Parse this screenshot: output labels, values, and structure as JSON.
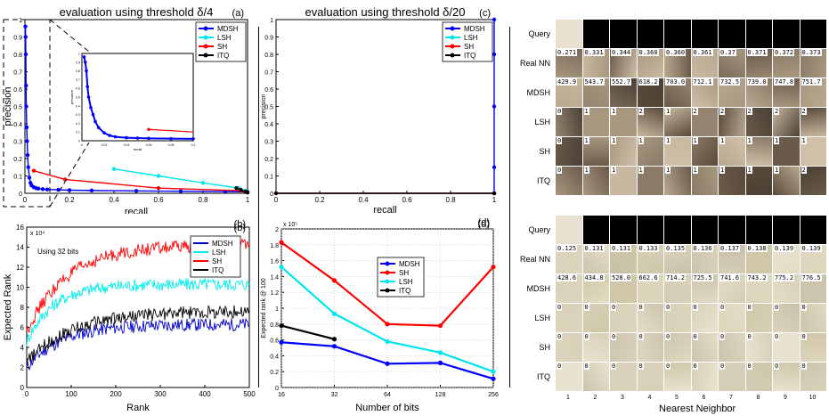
{
  "chart_data": [
    {
      "id": "a",
      "type": "line",
      "panel_label": "(a)",
      "title": "evaluation using threshold δ/4",
      "xlabel": "recall",
      "ylabel": "precision",
      "xlim": [
        0,
        1
      ],
      "ylim": [
        0,
        1
      ],
      "xticks": [
        "0",
        "0.2",
        "0.4",
        "0.6",
        "0.8",
        "1"
      ],
      "yticks": [
        "0",
        "0.1",
        "0.2",
        "0.3",
        "0.4",
        "0.5",
        "0.6",
        "0.7",
        "0.8",
        "0.9",
        "1"
      ],
      "legend": "top-right",
      "series": [
        {
          "name": "MDSH",
          "color": "#0000ff",
          "x": [
            0.002,
            0.003,
            0.004,
            0.005,
            0.006,
            0.008,
            0.01,
            0.012,
            0.015,
            0.02,
            0.025,
            0.03,
            0.04,
            0.05,
            0.06,
            0.08,
            0.1,
            0.15,
            0.2,
            0.3,
            0.5,
            0.7,
            0.9,
            1.0
          ],
          "y": [
            0.96,
            0.9,
            0.8,
            0.62,
            0.5,
            0.38,
            0.3,
            0.22,
            0.15,
            0.09,
            0.06,
            0.045,
            0.035,
            0.03,
            0.027,
            0.024,
            0.022,
            0.02,
            0.018,
            0.016,
            0.014,
            0.012,
            0.01,
            0.008
          ]
        },
        {
          "name": "LSH",
          "color": "#00e5ee",
          "x": [
            0.4,
            0.6,
            0.8,
            0.96,
            0.99,
            1.0
          ],
          "y": [
            0.14,
            0.1,
            0.06,
            0.03,
            0.015,
            0.005
          ]
        },
        {
          "name": "SH",
          "color": "#ff0000",
          "x": [
            0.04,
            0.18,
            0.6,
            0.97,
            1.0
          ],
          "y": [
            0.13,
            0.08,
            0.03,
            0.015,
            0.005
          ]
        },
        {
          "name": "ITQ",
          "color": "#000000",
          "x": [
            0.95,
            0.97,
            0.99,
            1.0
          ],
          "y": [
            0.03,
            0.02,
            0.01,
            0.005
          ]
        }
      ],
      "inset": {
        "xlabel": "recall",
        "ylabel": "precision",
        "xticks": [
          "0",
          "0.02",
          "0.04",
          "0.06",
          "0.08",
          "0.1"
        ],
        "yticks": [
          "0",
          "0.1",
          "0.2",
          "0.3",
          "0.4",
          "0.5",
          "0.6",
          "0.7",
          "0.8",
          "0.9",
          "1"
        ]
      }
    },
    {
      "id": "b",
      "type": "line",
      "panel_label": "(b)",
      "annotation": "Using 32 bits",
      "exponent": "x 10⁴",
      "xlabel": "Rank",
      "ylabel": "Expected Rank",
      "xlim": [
        0,
        500
      ],
      "ylim": [
        0,
        16
      ],
      "xticks": [
        "0",
        "100",
        "200",
        "300",
        "400",
        "500"
      ],
      "yticks": [
        "0",
        "2",
        "4",
        "6",
        "8",
        "10",
        "12",
        "14",
        "16"
      ],
      "legend": "top-right",
      "series": [
        {
          "name": "MDSH",
          "color": "#0000cc",
          "start": 2.0,
          "end": 6.3,
          "rate": 80
        },
        {
          "name": "LSH",
          "color": "#00eeee",
          "start": 4.6,
          "end": 10.3,
          "rate": 60
        },
        {
          "name": "SH",
          "color": "#ff0000",
          "start": 5.6,
          "end": 14.2,
          "rate": 90
        },
        {
          "name": "ITQ",
          "color": "#000000",
          "start": 2.5,
          "end": 7.6,
          "rate": 100
        }
      ]
    },
    {
      "id": "c",
      "type": "line",
      "panel_label": "(c)",
      "title": "evaluation using threshold δ/20",
      "xlabel": "recall",
      "ylabel": "precision",
      "xlim": [
        0,
        1
      ],
      "ylim": [
        0,
        1
      ],
      "xticks": [
        "0",
        "0.2",
        "0.4",
        "0.6",
        "0.8",
        "1"
      ],
      "yticks": [
        "0",
        "0.1",
        "0.2",
        "0.3",
        "0.4",
        "0.5",
        "0.6",
        "0.7",
        "0.8",
        "0.9",
        "1"
      ],
      "legend": "top-right",
      "series": [
        {
          "name": "MDSH",
          "color": "#0000ff",
          "x": [
            1.0,
            1.0,
            1.0,
            1.0,
            1.0
          ],
          "y": [
            0.0,
            0.15,
            0.5,
            0.8,
            1.0
          ]
        },
        {
          "name": "LSH",
          "color": "#00e5ee",
          "x": [
            0.0,
            1.0
          ],
          "y": [
            0.0,
            0.0
          ]
        },
        {
          "name": "SH",
          "color": "#ff0000",
          "x": [
            0.0,
            1.0
          ],
          "y": [
            0.0,
            0.0
          ]
        },
        {
          "name": "ITQ",
          "color": "#000000",
          "x": [
            0.0,
            1.0
          ],
          "y": [
            0.0,
            0.0
          ]
        }
      ]
    },
    {
      "id": "d",
      "type": "line",
      "panel_label": "(d)",
      "exponent": "x 10⁵",
      "xlabel": "Number of bits",
      "ylabel": "Expected rank @ 100",
      "categories": [
        "16",
        "32",
        "64",
        "128",
        "256"
      ],
      "ylim": [
        0,
        2
      ],
      "yticks": [
        "0",
        "0.2",
        "0.4",
        "0.6",
        "0.8",
        "1",
        "1.2",
        "1.4",
        "1.6",
        "1.8",
        "2"
      ],
      "legend": "center",
      "series": [
        {
          "name": "MDSH",
          "color": "#0000ff",
          "values": [
            0.57,
            0.52,
            0.3,
            0.31,
            0.11
          ]
        },
        {
          "name": "SH",
          "color": "#ff0000",
          "values": [
            1.83,
            1.35,
            0.8,
            0.78,
            1.52
          ]
        },
        {
          "name": "LSH",
          "color": "#00e5ee",
          "values": [
            1.52,
            0.93,
            0.58,
            0.44,
            0.2
          ]
        },
        {
          "name": "ITQ",
          "color": "#000000",
          "values": [
            0.78,
            0.61,
            null,
            null,
            null
          ]
        }
      ]
    }
  ],
  "retrieval": {
    "xlabel": "Nearest Neighbor",
    "columns": [
      "1",
      "2",
      "3",
      "4",
      "5",
      "6",
      "7",
      "8",
      "9",
      "10"
    ],
    "row_labels": [
      "Query",
      "Real NN",
      "MDSH",
      "LSH",
      "SH",
      "ITQ"
    ],
    "top": {
      "real_nn": [
        "0.271",
        "0.331",
        "0.344",
        "0.360",
        "0.360",
        "0.361",
        "0.37",
        "0.371",
        "0.372",
        "0.373"
      ],
      "mdsh": [
        "429.9",
        "543.7",
        "552.7",
        "618.2",
        "703.0",
        "712.1",
        "732.5",
        "739.0",
        "747.8",
        "751.7"
      ],
      "lsh": [
        "0",
        "1",
        "1",
        "2",
        "1",
        "2",
        "2",
        "2",
        "2",
        "2"
      ],
      "sh": [
        "0",
        "1",
        "1",
        "1",
        "1",
        "1",
        "1",
        "1",
        "1",
        "1"
      ],
      "itq": [
        "0",
        "1",
        "1",
        "1",
        "1",
        "1",
        "1",
        "1",
        "1",
        "2"
      ]
    },
    "bottom": {
      "real_nn": [
        "0.125",
        "0.131",
        "0.131",
        "0.133",
        "0.135",
        "0.136",
        "0.137",
        "0.138",
        "0.139",
        "0.139"
      ],
      "mdsh": [
        "428.6",
        "434.8",
        "528.0",
        "662.6",
        "714.2",
        "725.5",
        "741.6",
        "743.2",
        "775.2",
        "776.5"
      ],
      "lsh": [
        "0",
        "0",
        "0",
        "0",
        "0",
        "0",
        "0",
        "0",
        "0",
        "0"
      ],
      "sh": [
        "0",
        "0",
        "0",
        "0",
        "0",
        "0",
        "0",
        "0",
        "0",
        "0"
      ],
      "itq": [
        "0",
        "0",
        "0",
        "0",
        "0",
        "0",
        "0",
        "0",
        "0",
        "0"
      ]
    }
  }
}
